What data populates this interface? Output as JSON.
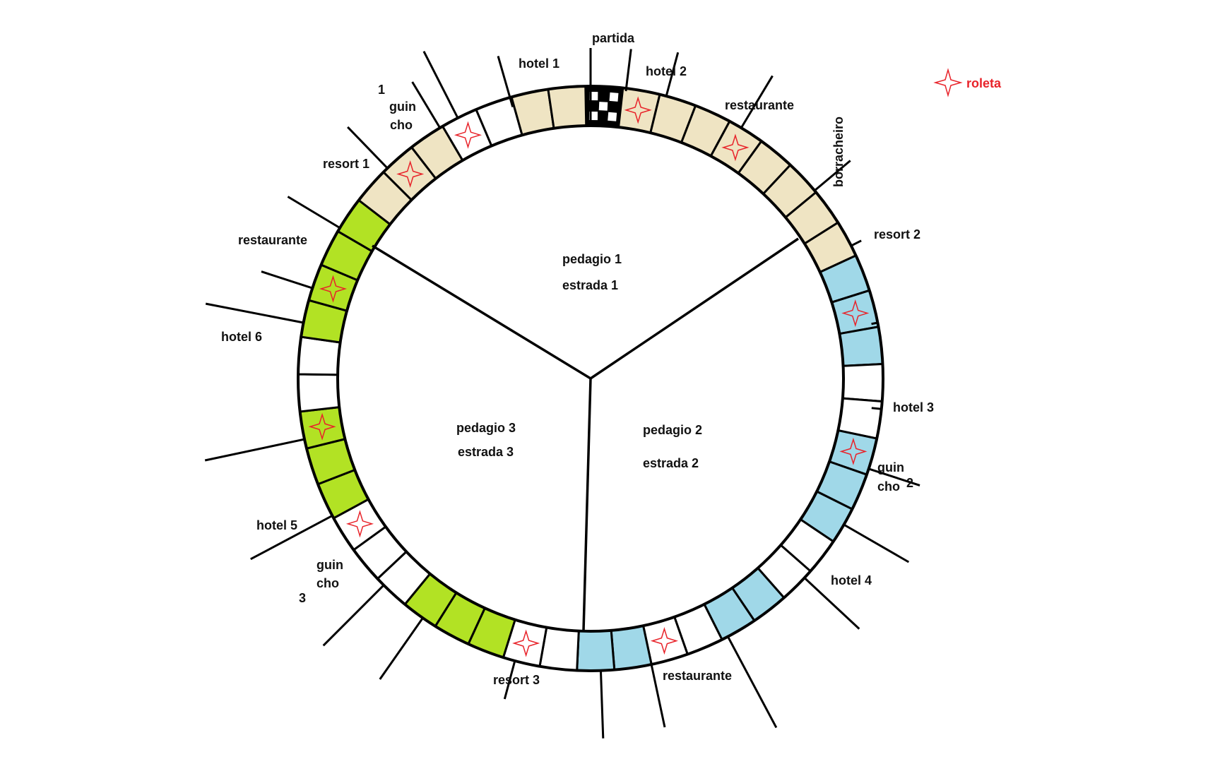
{
  "colors": {
    "beige": "#efe4c3",
    "blue": "#a0d8e8",
    "green": "#b2e224",
    "white": "#ffffff",
    "line": "#000000",
    "star": "#e8232a"
  },
  "legend": {
    "icon": "star-icon",
    "label": "roleta"
  },
  "zones": [
    {
      "label1": "pedagio  1",
      "label2": "estrada 1"
    },
    {
      "label1": "pedagio  2",
      "label2": "estrada 2"
    },
    {
      "label1": "pedagio 3",
      "label2": "estrada 3"
    }
  ],
  "labels": {
    "partida": "partida",
    "hotel1": "hotel 1",
    "hotel2": "hotel 2",
    "restaurante1": "restaurante",
    "borracheiro": "borracheiro",
    "resort2": "resort  2",
    "hotel3": "hotel 3",
    "guincho2a": "guin",
    "guincho2b": "cho",
    "guincho2c": "2",
    "hotel4": "hotel 4",
    "restaurante2": "restaurante",
    "resort3": "resort 3",
    "guincho3a": "guin",
    "guincho3b": "cho",
    "guincho3c": "3",
    "hotel5": "hotel 5",
    "hotel6": "hotel 6",
    "restaurante3": "restaurante",
    "resort1": "resort  1",
    "guincho1a": "1",
    "guincho1b": "guin",
    "guincho1c": "cho"
  },
  "cells": [
    {
      "color": "start"
    },
    {
      "color": "beige",
      "star": true
    },
    {
      "color": "beige"
    },
    {
      "color": "beige"
    },
    {
      "color": "beige",
      "star": true
    },
    {
      "color": "beige"
    },
    {
      "color": "beige"
    },
    {
      "color": "beige"
    },
    {
      "color": "beige"
    },
    {
      "color": "blue"
    },
    {
      "color": "blue",
      "star": true
    },
    {
      "color": "blue"
    },
    {
      "color": "white"
    },
    {
      "color": "white"
    },
    {
      "color": "blue",
      "star": true
    },
    {
      "color": "blue"
    },
    {
      "color": "blue"
    },
    {
      "color": "white"
    },
    {
      "color": "white"
    },
    {
      "color": "blue"
    },
    {
      "color": "blue"
    },
    {
      "color": "white"
    },
    {
      "color": "white",
      "star": true
    },
    {
      "color": "blue"
    },
    {
      "color": "blue"
    },
    {
      "color": "white"
    },
    {
      "color": "white",
      "star": true
    },
    {
      "color": "green"
    },
    {
      "color": "green"
    },
    {
      "color": "green"
    },
    {
      "color": "white"
    },
    {
      "color": "white"
    },
    {
      "color": "white",
      "star": true
    },
    {
      "color": "green"
    },
    {
      "color": "green"
    },
    {
      "color": "green",
      "star": true
    },
    {
      "color": "white"
    },
    {
      "color": "white"
    },
    {
      "color": "green"
    },
    {
      "color": "green",
      "star": true
    },
    {
      "color": "green"
    },
    {
      "color": "green"
    },
    {
      "color": "beige"
    },
    {
      "color": "beige",
      "star": true
    },
    {
      "color": "beige"
    },
    {
      "color": "white",
      "star": true
    },
    {
      "color": "white"
    },
    {
      "color": "beige"
    },
    {
      "color": "beige"
    }
  ]
}
